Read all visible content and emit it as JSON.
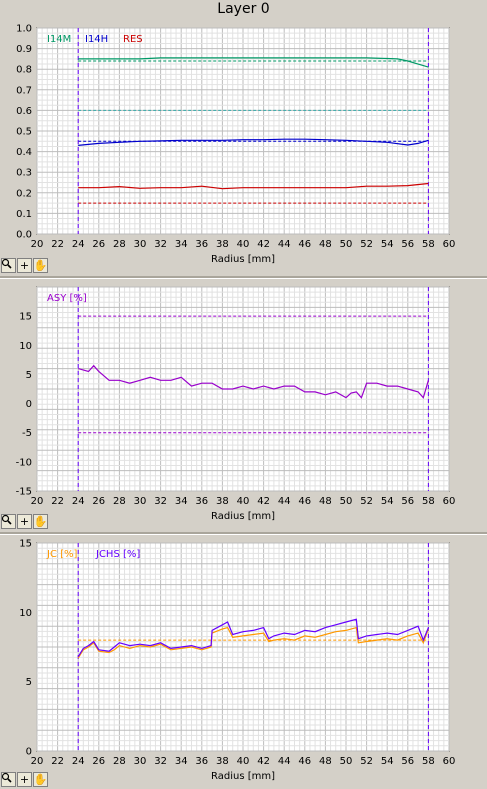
{
  "window_title": "Layer 0",
  "toolbar": {
    "zoom_icon": "magnifier-icon",
    "crosshair_icon": "crosshair-icon",
    "pan_icon": "hand-icon",
    "crosshair_glyph": "+",
    "pan_glyph": "✋"
  },
  "colors": {
    "green": "#009966",
    "blue": "#0000cc",
    "red": "#cc0000",
    "purple": "#9900cc",
    "orange": "#ff9900",
    "jchs": "#6600ff",
    "cyan_ref": "#33aaaa"
  },
  "chart_data": [
    {
      "type": "line",
      "xlabel": "Radius [mm]",
      "ylabel": "",
      "xlim": [
        20,
        60
      ],
      "ylim": [
        0.0,
        1.0
      ],
      "xticks": [
        "20",
        "22",
        "24",
        "26",
        "28",
        "30",
        "32",
        "34",
        "36",
        "38",
        "40",
        "42",
        "44",
        "46",
        "48",
        "50",
        "52",
        "54",
        "56",
        "58",
        "60"
      ],
      "yticks": [
        "0.0",
        "0.1",
        "0.2",
        "0.3",
        "0.4",
        "0.5",
        "0.6",
        "0.7",
        "0.8",
        "0.9",
        "1.0"
      ],
      "vlines": [
        24,
        58
      ],
      "grid": true,
      "legend": [
        "I14M",
        "I14H",
        "RES"
      ],
      "series": [
        {
          "name": "I14M",
          "x": [
            24,
            26,
            28,
            30,
            32,
            34,
            36,
            38,
            40,
            42,
            44,
            46,
            48,
            50,
            52,
            54,
            55,
            56,
            57,
            58
          ],
          "values": [
            0.85,
            0.85,
            0.85,
            0.85,
            0.855,
            0.855,
            0.855,
            0.855,
            0.855,
            0.855,
            0.855,
            0.855,
            0.855,
            0.855,
            0.855,
            0.852,
            0.85,
            0.84,
            0.825,
            0.81
          ]
        },
        {
          "name": "I14H",
          "x": [
            24,
            25,
            26,
            28,
            30,
            32,
            34,
            36,
            38,
            40,
            42,
            44,
            46,
            48,
            50,
            52,
            54,
            56,
            57,
            58
          ],
          "values": [
            0.43,
            0.435,
            0.44,
            0.445,
            0.45,
            0.452,
            0.455,
            0.455,
            0.455,
            0.458,
            0.458,
            0.46,
            0.46,
            0.458,
            0.455,
            0.45,
            0.445,
            0.432,
            0.44,
            0.455
          ]
        },
        {
          "name": "RES",
          "x": [
            24,
            26,
            28,
            30,
            32,
            34,
            36,
            38,
            40,
            42,
            44,
            46,
            48,
            50,
            52,
            54,
            56,
            58
          ],
          "values": [
            0.225,
            0.225,
            0.23,
            0.222,
            0.225,
            0.225,
            0.232,
            0.22,
            0.225,
            0.225,
            0.225,
            0.225,
            0.225,
            0.225,
            0.232,
            0.232,
            0.235,
            0.245
          ]
        }
      ],
      "reference_lines": [
        {
          "y": 0.84,
          "color": "green"
        },
        {
          "y": 0.6,
          "color": "cyan"
        },
        {
          "y": 0.45,
          "color": "blue"
        },
        {
          "y": 0.15,
          "color": "red"
        }
      ]
    },
    {
      "type": "line",
      "xlabel": "Radius [mm]",
      "ylabel": "",
      "xlim": [
        20,
        60
      ],
      "ylim": [
        -15,
        20
      ],
      "xticks": [
        "20",
        "22",
        "24",
        "26",
        "28",
        "30",
        "32",
        "34",
        "36",
        "38",
        "40",
        "42",
        "44",
        "46",
        "48",
        "50",
        "52",
        "54",
        "56",
        "58",
        "60"
      ],
      "yticks": [
        "-15",
        "-10",
        "-5",
        "0",
        "5",
        "10",
        "15"
      ],
      "vlines": [
        24,
        58
      ],
      "grid": true,
      "legend": [
        "ASY [%]"
      ],
      "series": [
        {
          "name": "ASY [%]",
          "x": [
            24,
            25,
            25.5,
            26,
            27,
            28,
            29,
            30,
            31,
            32,
            33,
            34,
            35,
            36,
            37,
            38,
            39,
            40,
            41,
            42,
            43,
            44,
            45,
            46,
            47,
            48,
            49,
            50,
            50.5,
            51,
            51.5,
            52,
            53,
            54,
            55,
            56,
            57,
            57.5,
            58
          ],
          "values": [
            6,
            5.5,
            6.5,
            5.5,
            4,
            4,
            3.5,
            4,
            4.5,
            4,
            4,
            4.5,
            3,
            3.5,
            3.5,
            2.5,
            2.5,
            3,
            2.5,
            3,
            2.5,
            3,
            3,
            2,
            2,
            1.5,
            2,
            1,
            1.8,
            2,
            1,
            3.5,
            3.5,
            3,
            3,
            2.5,
            2,
            1,
            4
          ]
        }
      ],
      "reference_lines": [
        {
          "y": 15,
          "color": "purple"
        },
        {
          "y": -5,
          "color": "purple"
        }
      ]
    },
    {
      "type": "line",
      "xlabel": "Radius [mm]",
      "ylabel": "",
      "xlim": [
        20,
        60
      ],
      "ylim": [
        0,
        15
      ],
      "xticks": [
        "20",
        "22",
        "24",
        "26",
        "28",
        "30",
        "32",
        "34",
        "36",
        "38",
        "40",
        "42",
        "44",
        "46",
        "48",
        "50",
        "52",
        "54",
        "56",
        "58",
        "60"
      ],
      "yticks": [
        "0",
        "5",
        "10",
        "15"
      ],
      "vlines": [
        24,
        58
      ],
      "grid": true,
      "legend": [
        "JC [%]",
        "JCHS [%]"
      ],
      "series": [
        {
          "name": "JC [%]",
          "x": [
            24,
            24.5,
            25,
            25.5,
            26,
            27,
            27.5,
            28,
            29,
            30,
            31,
            32,
            33,
            34,
            35,
            36,
            36.9,
            37,
            38,
            38.5,
            39,
            40,
            41,
            42,
            42.5,
            43,
            44,
            45,
            46,
            47,
            48,
            49,
            50,
            51,
            51.2,
            52,
            53,
            54,
            55,
            56,
            57,
            57.5,
            58
          ],
          "values": [
            6.7,
            7.3,
            7.5,
            7.8,
            7.2,
            7.1,
            7.3,
            7.6,
            7.4,
            7.6,
            7.5,
            7.7,
            7.3,
            7.4,
            7.5,
            7.3,
            7.5,
            8.5,
            8.8,
            8.9,
            8.2,
            8.3,
            8.4,
            8.5,
            7.9,
            8.0,
            8.1,
            8.0,
            8.3,
            8.2,
            8.4,
            8.6,
            8.7,
            8.9,
            7.8,
            7.9,
            8.0,
            8.1,
            8.0,
            8.3,
            8.5,
            7.8,
            8.8
          ]
        },
        {
          "name": "JCHS [%]",
          "x": [
            24,
            24.5,
            25,
            25.5,
            26,
            27,
            27.5,
            28,
            29,
            30,
            31,
            32,
            33,
            34,
            35,
            36,
            36.9,
            37,
            38,
            38.5,
            39,
            40,
            41,
            42,
            42.5,
            43,
            44,
            45,
            46,
            47,
            48,
            49,
            50,
            51,
            51.2,
            52,
            53,
            54,
            55,
            56,
            57,
            57.5,
            58
          ],
          "values": [
            6.8,
            7.4,
            7.6,
            7.9,
            7.3,
            7.2,
            7.5,
            7.8,
            7.6,
            7.7,
            7.6,
            7.8,
            7.4,
            7.5,
            7.6,
            7.4,
            7.6,
            8.7,
            9.1,
            9.3,
            8.4,
            8.6,
            8.7,
            8.9,
            8.1,
            8.3,
            8.5,
            8.4,
            8.7,
            8.6,
            8.9,
            9.1,
            9.3,
            9.5,
            8.1,
            8.3,
            8.4,
            8.5,
            8.4,
            8.7,
            9.0,
            8.0,
            8.9
          ]
        }
      ],
      "reference_lines": [
        {
          "y": 8.0,
          "color": "orange"
        }
      ]
    }
  ]
}
